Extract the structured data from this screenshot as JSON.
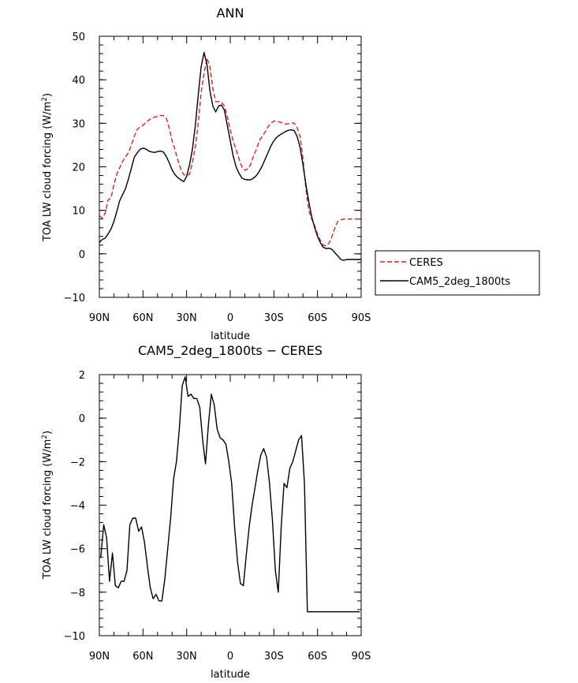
{
  "chart_data": [
    {
      "type": "line",
      "title": "ANN",
      "xlabel": "latitude",
      "ylabel": "TOA LW cloud forcing (W/m",
      "ylabel_sup": "2",
      "ylabel_close": ")",
      "xlim": [
        90,
        -90
      ],
      "ylim": [
        -10,
        50
      ],
      "x_ticks": [
        90,
        60,
        30,
        0,
        -30,
        -60,
        -90
      ],
      "x_tick_labels": [
        "90N",
        "60N",
        "30N",
        "0",
        "30S",
        "60S",
        "90S"
      ],
      "y_ticks": [
        -10,
        0,
        10,
        20,
        30,
        40,
        50
      ],
      "y_tick_labels": [
        "−10",
        "0",
        "10",
        "20",
        "30",
        "40",
        "50"
      ],
      "legend": "right",
      "series": [
        {
          "name": "CERES",
          "color": "#e8201c",
          "dash": "dashed",
          "x": [
            90,
            88,
            86,
            84,
            82,
            80,
            78,
            76,
            74,
            72,
            70,
            68,
            66,
            64,
            62,
            60,
            58,
            56,
            54,
            52,
            50,
            48,
            46,
            44,
            42,
            40,
            38,
            36,
            34,
            32,
            30,
            28,
            26,
            24,
            22,
            20,
            18,
            16,
            14,
            12,
            10,
            8,
            6,
            4,
            2,
            0,
            -2,
            -4,
            -6,
            -8,
            -10,
            -12,
            -14,
            -16,
            -18,
            -20,
            -22,
            -24,
            -26,
            -28,
            -30,
            -32,
            -34,
            -36,
            -38,
            -40,
            -42,
            -44,
            -46,
            -48,
            -50,
            -52,
            -54,
            -56,
            -58,
            -60,
            -62,
            -64,
            -66,
            -68,
            -70,
            -72,
            -74,
            -76,
            -78,
            -80,
            -82,
            -84,
            -86,
            -88,
            -90
          ],
          "y": [
            8.8,
            8.2,
            9.3,
            12.4,
            12.8,
            15.8,
            18.3,
            19.8,
            21.2,
            22.3,
            23.2,
            25.0,
            27.0,
            28.6,
            29.2,
            29.5,
            30.2,
            30.7,
            31.2,
            31.4,
            31.6,
            31.8,
            31.8,
            31.2,
            29.0,
            26.0,
            24.0,
            21.5,
            19.5,
            18.2,
            18.0,
            18.3,
            21.0,
            24.5,
            30.0,
            37.0,
            41.5,
            45.0,
            43.0,
            38.0,
            35.0,
            35.0,
            34.8,
            34.0,
            31.5,
            28.5,
            26.0,
            24.0,
            21.8,
            20.0,
            19.2,
            19.5,
            20.5,
            22.5,
            24.0,
            26.0,
            27.0,
            28.0,
            29.2,
            30.0,
            30.5,
            30.5,
            30.3,
            30.0,
            29.8,
            29.9,
            30.1,
            30.0,
            29.0,
            27.0,
            22.0,
            15.0,
            10.0,
            8.0,
            6.5,
            4.5,
            3.0,
            2.0,
            1.8,
            2.5,
            4.0,
            6.0,
            7.5,
            7.8,
            8.0,
            8.0,
            8.0,
            8.0,
            8.0,
            8.0,
            8.0
          ]
        },
        {
          "name": "CAM5_2deg_1800ts",
          "color": "#000000",
          "dash": "solid",
          "x": [
            90,
            88,
            86,
            84,
            82,
            80,
            78,
            76,
            74,
            72,
            70,
            68,
            66,
            64,
            62,
            60,
            58,
            56,
            54,
            52,
            50,
            48,
            46,
            44,
            42,
            40,
            38,
            36,
            34,
            32,
            30,
            28,
            26,
            24,
            22,
            20,
            18,
            16,
            14,
            12,
            10,
            8,
            6,
            4,
            2,
            0,
            -2,
            -4,
            -6,
            -8,
            -10,
            -12,
            -14,
            -16,
            -18,
            -20,
            -22,
            -24,
            -26,
            -28,
            -30,
            -32,
            -34,
            -36,
            -38,
            -40,
            -42,
            -44,
            -46,
            -48,
            -50,
            -52,
            -54,
            -56,
            -58,
            -60,
            -62,
            -64,
            -66,
            -68,
            -70,
            -72,
            -74,
            -76,
            -78,
            -80,
            -82,
            -84,
            -86,
            -88,
            -90
          ],
          "y": [
            2.6,
            3.3,
            3.6,
            4.6,
            5.7,
            7.4,
            9.7,
            12.2,
            13.6,
            15.0,
            17.2,
            19.7,
            22.2,
            23.2,
            24.0,
            24.3,
            24.1,
            23.6,
            23.4,
            23.3,
            23.5,
            23.6,
            23.4,
            22.4,
            21.0,
            19.3,
            18.2,
            17.5,
            17.0,
            16.6,
            17.8,
            20.5,
            24.0,
            29.5,
            36.5,
            43.0,
            46.3,
            43.5,
            37.5,
            34.0,
            32.6,
            34.0,
            34.2,
            33.0,
            29.5,
            26.0,
            22.5,
            20.0,
            18.5,
            17.4,
            17.1,
            17.0,
            17.0,
            17.4,
            18.0,
            19.0,
            20.2,
            21.8,
            23.3,
            24.8,
            26.0,
            26.8,
            27.3,
            27.7,
            28.1,
            28.4,
            28.5,
            28.3,
            27.0,
            24.5,
            20.5,
            16.0,
            12.0,
            8.5,
            6.0,
            4.0,
            2.5,
            1.5,
            1.2,
            1.3,
            1.0,
            0.2,
            -0.5,
            -1.3,
            -1.5,
            -1.3,
            -1.3,
            -1.3,
            -1.3,
            -1.3,
            -1.3
          ]
        }
      ]
    },
    {
      "type": "line",
      "title": "CAM5_2deg_1800ts − CERES",
      "xlabel": "latitude",
      "ylabel": "TOA LW cloud forcing (W/m",
      "ylabel_sup": "2",
      "ylabel_close": ")",
      "xlim": [
        90,
        -90
      ],
      "ylim": [
        -10,
        2
      ],
      "x_ticks": [
        90,
        60,
        30,
        0,
        -30,
        -60,
        -90
      ],
      "x_tick_labels": [
        "90N",
        "60N",
        "30N",
        "0",
        "30S",
        "60S",
        "90S"
      ],
      "y_ticks": [
        -10,
        -8,
        -6,
        -4,
        -2,
        0,
        2
      ],
      "y_tick_labels": [
        "−10",
        "−8",
        "−6",
        "−4",
        "−2",
        "0",
        "2"
      ],
      "series": [
        {
          "color": "#000000",
          "dash": "solid",
          "x": [
            89,
            87,
            85,
            83,
            81,
            79,
            77,
            75,
            73,
            71,
            69,
            67,
            65,
            63,
            61,
            59,
            57,
            55,
            53,
            51,
            49,
            47,
            45,
            43,
            41,
            39,
            37,
            35,
            33,
            31,
            29,
            27,
            25,
            23,
            21,
            19,
            17,
            15,
            13,
            11,
            9,
            7,
            5,
            3,
            1,
            -1,
            -3,
            -5,
            -7,
            -9,
            -11,
            -13,
            -15,
            -17,
            -19,
            -21,
            -23,
            -25,
            -27,
            -29,
            -31,
            -33,
            -35,
            -37,
            -39,
            -41,
            -43,
            -45,
            -47,
            -49,
            -51,
            -53,
            -55,
            -57,
            -59,
            -61,
            -63,
            -65,
            -67,
            -69,
            -71,
            -73,
            -75,
            -77,
            -79,
            -81,
            -83,
            -85,
            -87,
            -89
          ],
          "y": [
            -6.4,
            -4.9,
            -5.5,
            -7.5,
            -6.2,
            -7.7,
            -7.8,
            -7.5,
            -7.5,
            -7.0,
            -4.9,
            -4.6,
            -4.6,
            -5.2,
            -5.0,
            -5.7,
            -6.8,
            -7.8,
            -8.3,
            -8.1,
            -8.4,
            -8.4,
            -7.4,
            -6.0,
            -4.6,
            -2.8,
            -2.0,
            -0.5,
            1.5,
            1.9,
            1.0,
            1.1,
            0.9,
            0.9,
            0.5,
            -1.0,
            -2.1,
            -0.3,
            1.1,
            0.6,
            -0.5,
            -0.9,
            -1.0,
            -1.2,
            -2.0,
            -3.0,
            -5.0,
            -6.6,
            -7.6,
            -7.7,
            -6.3,
            -5.0,
            -4.0,
            -3.2,
            -2.4,
            -1.7,
            -1.4,
            -1.8,
            -3.0,
            -4.7,
            -7.0,
            -8.0,
            -5.0,
            -3.0,
            -3.2,
            -2.3,
            -2.0,
            -1.5,
            -1.0,
            -0.8,
            -3.0,
            -8.9,
            -8.9,
            -8.9,
            -8.9,
            -8.9,
            -8.9,
            -8.9,
            -8.9,
            -8.9,
            -8.9,
            -8.9,
            -8.9,
            -8.9,
            -8.9,
            -8.9,
            -8.9,
            -8.9,
            -8.9,
            -8.9
          ]
        }
      ]
    }
  ]
}
